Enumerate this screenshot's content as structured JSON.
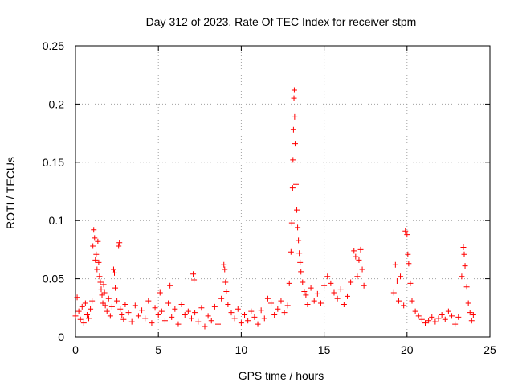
{
  "chart_data": {
    "type": "scatter",
    "title": "Day 312 of 2023, Rate Of TEC Index for receiver stpm",
    "xlabel": "GPS time / hours",
    "ylabel": "ROTI / TECUs",
    "xlim": [
      0,
      25
    ],
    "ylim": [
      0,
      0.25
    ],
    "xticks": [
      0,
      5,
      10,
      15,
      20,
      25
    ],
    "xtick_labels": [
      "0",
      "5",
      "10",
      "15",
      "20",
      "25"
    ],
    "yticks": [
      0,
      0.05,
      0.1,
      0.15,
      0.2,
      0.25
    ],
    "ytick_labels": [
      "0",
      "0.05",
      "0.1",
      "0.15",
      "0.2",
      "0.25"
    ],
    "grid": true,
    "marker": "plus",
    "color": "#ff0000",
    "series": [
      {
        "points": [
          [
            0.0,
            0.018
          ],
          [
            0.1,
            0.034
          ],
          [
            0.2,
            0.022
          ],
          [
            0.3,
            0.015
          ],
          [
            0.4,
            0.026
          ],
          [
            0.5,
            0.012
          ],
          [
            0.6,
            0.029
          ],
          [
            0.7,
            0.019
          ],
          [
            0.8,
            0.016
          ],
          [
            0.9,
            0.024
          ],
          [
            1.0,
            0.031
          ],
          [
            1.05,
            0.078
          ],
          [
            1.1,
            0.092
          ],
          [
            1.15,
            0.085
          ],
          [
            1.2,
            0.066
          ],
          [
            1.25,
            0.071
          ],
          [
            1.3,
            0.058
          ],
          [
            1.35,
            0.082
          ],
          [
            1.4,
            0.064
          ],
          [
            1.45,
            0.052
          ],
          [
            1.5,
            0.047
          ],
          [
            1.55,
            0.041
          ],
          [
            1.6,
            0.036
          ],
          [
            1.65,
            0.029
          ],
          [
            1.7,
            0.045
          ],
          [
            1.75,
            0.038
          ],
          [
            1.8,
            0.027
          ],
          [
            1.9,
            0.022
          ],
          [
            2.0,
            0.033
          ],
          [
            2.1,
            0.018
          ],
          [
            2.2,
            0.026
          ],
          [
            2.3,
            0.058
          ],
          [
            2.35,
            0.055
          ],
          [
            2.4,
            0.042
          ],
          [
            2.5,
            0.031
          ],
          [
            2.6,
            0.078
          ],
          [
            2.65,
            0.081
          ],
          [
            2.7,
            0.024
          ],
          [
            2.8,
            0.019
          ],
          [
            2.9,
            0.015
          ],
          [
            3.0,
            0.028
          ],
          [
            3.2,
            0.021
          ],
          [
            3.4,
            0.013
          ],
          [
            3.6,
            0.027
          ],
          [
            3.8,
            0.018
          ],
          [
            4.0,
            0.023
          ],
          [
            4.2,
            0.016
          ],
          [
            4.4,
            0.031
          ],
          [
            4.6,
            0.012
          ],
          [
            4.8,
            0.025
          ],
          [
            5.0,
            0.019
          ],
          [
            5.1,
            0.038
          ],
          [
            5.2,
            0.022
          ],
          [
            5.4,
            0.014
          ],
          [
            5.6,
            0.029
          ],
          [
            5.7,
            0.044
          ],
          [
            5.8,
            0.017
          ],
          [
            6.0,
            0.024
          ],
          [
            6.2,
            0.011
          ],
          [
            6.4,
            0.028
          ],
          [
            6.6,
            0.019
          ],
          [
            6.8,
            0.022
          ],
          [
            7.0,
            0.016
          ],
          [
            7.1,
            0.054
          ],
          [
            7.15,
            0.049
          ],
          [
            7.2,
            0.021
          ],
          [
            7.4,
            0.013
          ],
          [
            7.6,
            0.025
          ],
          [
            7.8,
            0.009
          ],
          [
            8.0,
            0.018
          ],
          [
            8.2,
            0.014
          ],
          [
            8.4,
            0.026
          ],
          [
            8.6,
            0.011
          ],
          [
            8.8,
            0.033
          ],
          [
            8.95,
            0.062
          ],
          [
            9.0,
            0.058
          ],
          [
            9.05,
            0.047
          ],
          [
            9.1,
            0.039
          ],
          [
            9.2,
            0.028
          ],
          [
            9.4,
            0.021
          ],
          [
            9.6,
            0.016
          ],
          [
            9.8,
            0.024
          ],
          [
            10.0,
            0.012
          ],
          [
            10.2,
            0.019
          ],
          [
            10.4,
            0.014
          ],
          [
            10.6,
            0.022
          ],
          [
            10.8,
            0.017
          ],
          [
            11.0,
            0.011
          ],
          [
            11.2,
            0.023
          ],
          [
            11.4,
            0.016
          ],
          [
            11.6,
            0.033
          ],
          [
            11.8,
            0.029
          ],
          [
            12.0,
            0.019
          ],
          [
            12.2,
            0.024
          ],
          [
            12.4,
            0.031
          ],
          [
            12.6,
            0.021
          ],
          [
            12.8,
            0.027
          ],
          [
            12.9,
            0.046
          ],
          [
            13.0,
            0.073
          ],
          [
            13.05,
            0.098
          ],
          [
            13.1,
            0.128
          ],
          [
            13.12,
            0.152
          ],
          [
            13.15,
            0.178
          ],
          [
            13.18,
            0.205
          ],
          [
            13.2,
            0.212
          ],
          [
            13.22,
            0.189
          ],
          [
            13.25,
            0.166
          ],
          [
            13.3,
            0.131
          ],
          [
            13.35,
            0.109
          ],
          [
            13.4,
            0.094
          ],
          [
            13.45,
            0.083
          ],
          [
            13.5,
            0.072
          ],
          [
            13.55,
            0.064
          ],
          [
            13.6,
            0.056
          ],
          [
            13.7,
            0.047
          ],
          [
            13.8,
            0.039
          ],
          [
            13.9,
            0.036
          ],
          [
            14.0,
            0.028
          ],
          [
            14.2,
            0.042
          ],
          [
            14.4,
            0.031
          ],
          [
            14.6,
            0.037
          ],
          [
            14.8,
            0.029
          ],
          [
            15.0,
            0.044
          ],
          [
            15.2,
            0.052
          ],
          [
            15.4,
            0.046
          ],
          [
            15.6,
            0.038
          ],
          [
            15.8,
            0.033
          ],
          [
            16.0,
            0.041
          ],
          [
            16.2,
            0.028
          ],
          [
            16.4,
            0.035
          ],
          [
            16.6,
            0.047
          ],
          [
            16.8,
            0.074
          ],
          [
            16.9,
            0.069
          ],
          [
            17.0,
            0.052
          ],
          [
            17.1,
            0.066
          ],
          [
            17.2,
            0.075
          ],
          [
            17.3,
            0.058
          ],
          [
            17.4,
            0.044
          ],
          [
            19.2,
            0.038
          ],
          [
            19.3,
            0.062
          ],
          [
            19.4,
            0.048
          ],
          [
            19.5,
            0.031
          ],
          [
            19.6,
            0.052
          ],
          [
            19.8,
            0.027
          ],
          [
            19.9,
            0.091
          ],
          [
            20.0,
            0.088
          ],
          [
            20.05,
            0.071
          ],
          [
            20.1,
            0.063
          ],
          [
            20.2,
            0.046
          ],
          [
            20.3,
            0.031
          ],
          [
            20.5,
            0.022
          ],
          [
            20.7,
            0.018
          ],
          [
            20.9,
            0.015
          ],
          [
            21.1,
            0.012
          ],
          [
            21.3,
            0.014
          ],
          [
            21.5,
            0.017
          ],
          [
            21.7,
            0.013
          ],
          [
            21.9,
            0.016
          ],
          [
            22.1,
            0.019
          ],
          [
            22.3,
            0.015
          ],
          [
            22.5,
            0.022
          ],
          [
            22.7,
            0.018
          ],
          [
            22.9,
            0.011
          ],
          [
            23.1,
            0.017
          ],
          [
            23.3,
            0.052
          ],
          [
            23.4,
            0.077
          ],
          [
            23.45,
            0.071
          ],
          [
            23.5,
            0.061
          ],
          [
            23.6,
            0.043
          ],
          [
            23.7,
            0.029
          ],
          [
            23.8,
            0.021
          ],
          [
            23.9,
            0.014
          ],
          [
            24.0,
            0.019
          ]
        ]
      }
    ]
  }
}
